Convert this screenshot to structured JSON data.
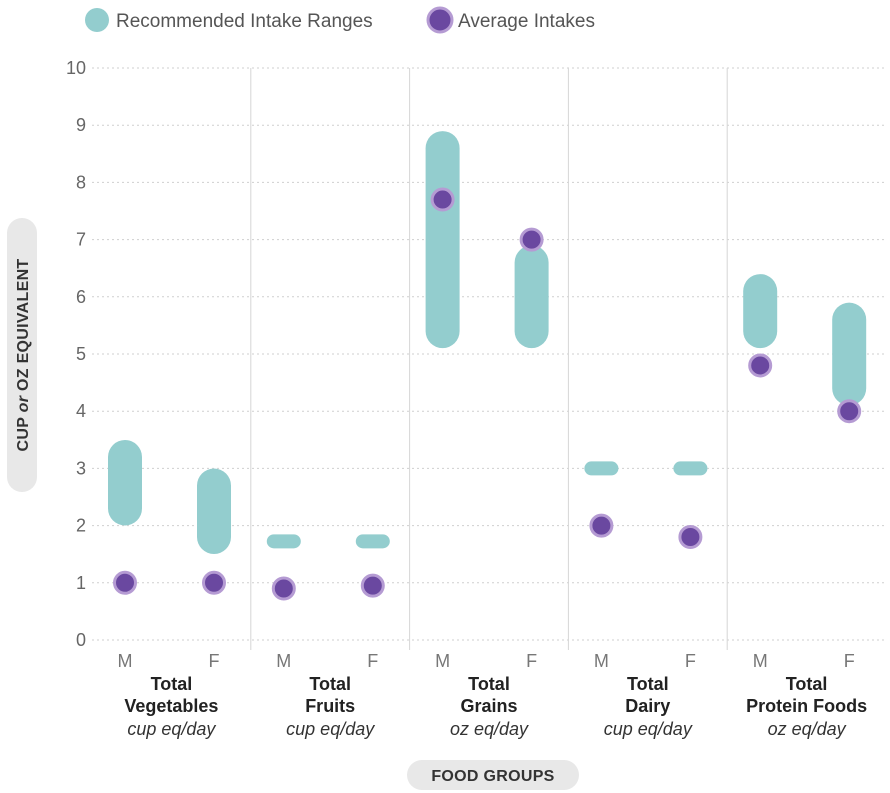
{
  "chart_data": {
    "type": "range-dot",
    "legend": [
      {
        "name": "Recommended Intake Ranges",
        "color": "#93CDCE"
      },
      {
        "name": "Average Intakes",
        "color": "#6A48A0"
      }
    ],
    "legend_placement": "top-left",
    "ylabel": {
      "part1": "CUP",
      "part2": "or",
      "part3": "OZ EQUIVALENT"
    },
    "xlabel": "FOOD GROUPS",
    "ylim": [
      0,
      10
    ],
    "yticks": [
      "0",
      "1",
      "2",
      "3",
      "4",
      "5",
      "6",
      "7",
      "8",
      "9",
      "10"
    ],
    "grid": true,
    "groups": [
      {
        "name1": "Total",
        "name2": "Vegetables",
        "unit": "cup eq/day",
        "bars": [
          {
            "sex": "M",
            "range": [
              2.3,
              3.2
            ],
            "average": 1.0
          },
          {
            "sex": "F",
            "range": [
              1.8,
              2.7
            ],
            "average": 1.0
          }
        ]
      },
      {
        "name1": "Total",
        "name2": "Fruits",
        "unit": "cup eq/day",
        "bars": [
          {
            "sex": "M",
            "range": [
              1.7,
              1.75
            ],
            "average": 0.9
          },
          {
            "sex": "F",
            "range": [
              1.7,
              1.75
            ],
            "average": 0.95
          }
        ]
      },
      {
        "name1": "Total",
        "name2": "Grains",
        "unit": "oz eq/day",
        "bars": [
          {
            "sex": "M",
            "range": [
              5.4,
              8.6
            ],
            "average": 7.7
          },
          {
            "sex": "F",
            "range": [
              5.4,
              6.6
            ],
            "average": 7.0
          }
        ]
      },
      {
        "name1": "Total",
        "name2": "Dairy",
        "unit": "cup eq/day",
        "bars": [
          {
            "sex": "M",
            "range": [
              3.0,
              3.0
            ],
            "average": 2.0
          },
          {
            "sex": "F",
            "range": [
              3.0,
              3.0
            ],
            "average": 1.8
          }
        ]
      },
      {
        "name1": "Total",
        "name2": "Protein Foods",
        "unit": "oz eq/day",
        "bars": [
          {
            "sex": "M",
            "range": [
              5.4,
              6.1
            ],
            "average": 4.8
          },
          {
            "sex": "F",
            "range": [
              4.4,
              5.6
            ],
            "average": 4.0
          }
        ]
      }
    ],
    "colors": {
      "range": "#93CDCE",
      "dot": "#6A48A0",
      "dot_ring": "#B59BD3",
      "grid": "#CFCFCF",
      "separator": "#D6D6D6",
      "pill_bg": "#E8E8E8"
    }
  }
}
